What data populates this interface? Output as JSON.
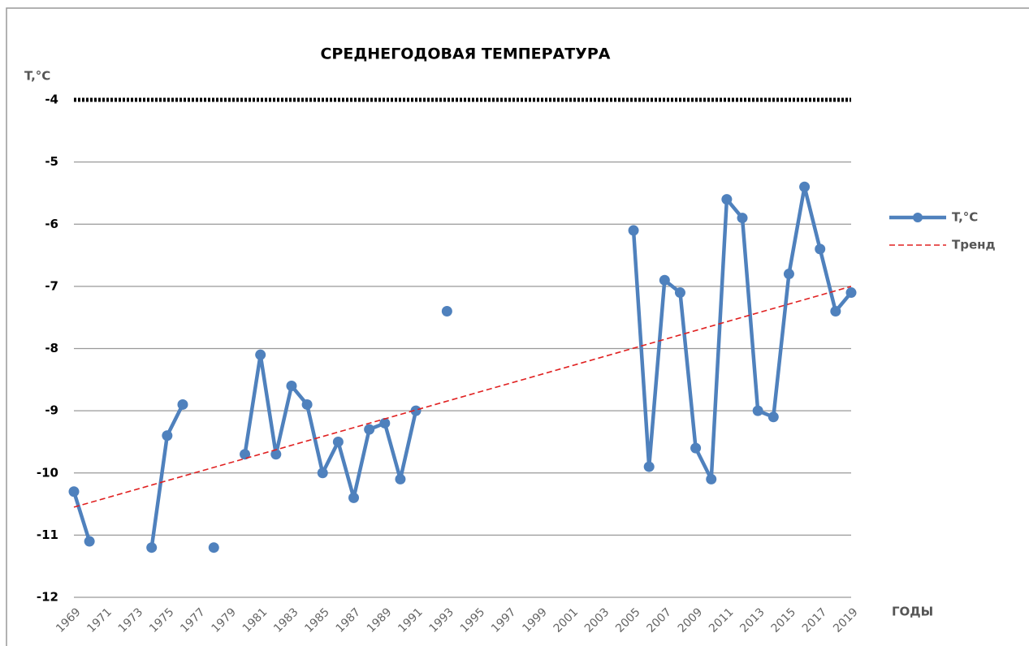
{
  "chart_data": {
    "type": "line",
    "title": "СРЕДНЕГОДОВАЯ ТЕМПЕРАТУРА",
    "y_label": "T,°C",
    "x_label": "ГОДЫ",
    "categories": [
      "1969",
      null,
      "1971",
      null,
      "1973",
      null,
      "1975",
      null,
      "1977",
      null,
      "1979",
      null,
      "1981",
      null,
      "1983",
      null,
      "1985",
      null,
      "1987",
      null,
      "1989",
      null,
      "1991",
      null,
      "1993",
      null,
      "1995",
      null,
      "1997",
      null,
      "1999",
      null,
      "2001",
      null,
      "2003",
      null,
      "2005",
      null,
      "2007",
      null,
      "2009",
      null,
      "2011",
      null,
      "2013",
      null,
      "2015",
      null,
      "2017",
      null,
      "2019"
    ],
    "series": [
      {
        "name": "T,°C",
        "color": "#4f81bd",
        "values": [
          -10.3,
          -11.1,
          null,
          null,
          null,
          -11.2,
          -9.4,
          -8.9,
          null,
          -11.2,
          null,
          -9.7,
          -8.1,
          -9.7,
          -8.6,
          -8.9,
          -10.0,
          -9.5,
          -10.4,
          -9.3,
          -9.2,
          -10.1,
          -9.0,
          null,
          -7.4,
          null,
          null,
          null,
          null,
          null,
          null,
          null,
          null,
          null,
          null,
          null,
          -6.1,
          -9.9,
          -6.9,
          -7.1,
          -9.6,
          -10.1,
          -5.6,
          -5.9,
          -9.0,
          -9.1,
          -6.8,
          -5.4,
          -6.4,
          -7.4,
          -7.1
        ]
      }
    ],
    "trend": {
      "name": "Тренд",
      "color": "#e02020",
      "start": -10.55,
      "end": -7.0
    },
    "ylim": [
      -12,
      -4
    ],
    "yticks": [
      -12,
      -11,
      -10,
      -9,
      -8,
      -7,
      -6,
      -5,
      -4
    ],
    "grid": true,
    "legend": "right"
  }
}
